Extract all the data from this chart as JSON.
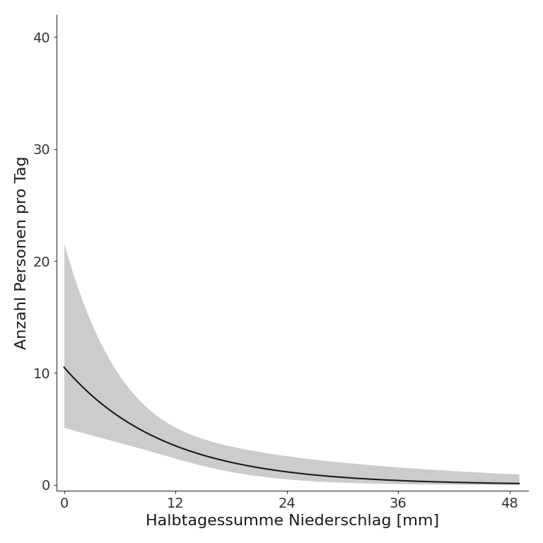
{
  "xlabel": "Halbtagessumme Niederschlag [mm]",
  "ylabel": "Anzahl Personen pro Tag",
  "xlim": [
    -0.5,
    50
  ],
  "ylim": [
    -0.5,
    42
  ],
  "xticks": [
    0,
    12,
    24,
    36,
    48
  ],
  "yticks": [
    0,
    10,
    20,
    30,
    40
  ],
  "x_max": 49,
  "regression_a": 2.352,
  "regression_b": -0.092,
  "ci_se_intercept": 0.365,
  "ci_se_slope": -0.0045,
  "line_color": "#1a1a1a",
  "ci_color": "#cccccc",
  "background_color": "#ffffff",
  "font_size_label": 16,
  "font_size_tick": 14,
  "line_width": 1.5
}
